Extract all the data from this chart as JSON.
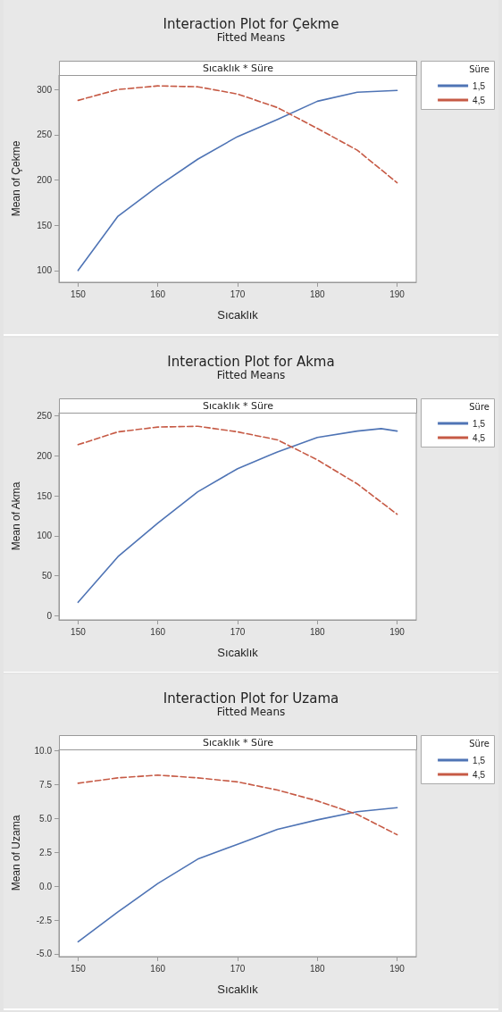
{
  "chart_data": [
    {
      "type": "line",
      "title": "Interaction Plot for Çekme",
      "subtitle": "Fitted Means",
      "annotations": [
        "Sıcaklık * Süre"
      ],
      "xlabel": "Sıcaklık",
      "ylabel": "Mean of Çekme",
      "legend_title": "Süre",
      "legend": "top right",
      "grid": false,
      "x": [
        150,
        155,
        160,
        165,
        170,
        175,
        180,
        185,
        190
      ],
      "xlim": [
        147.6,
        192.4
      ],
      "xticks": [
        150,
        160,
        170,
        180,
        190
      ],
      "ylim": [
        87,
        316
      ],
      "yticks": [
        100,
        150,
        200,
        250,
        300
      ],
      "series": [
        {
          "name": "1,5",
          "color": "#4f74b5",
          "line_style": "solid",
          "values": [
            100,
            160,
            193,
            223,
            248,
            267,
            287,
            297,
            299
          ]
        },
        {
          "name": "4,5",
          "color": "#c65a45",
          "line_style": "dashed",
          "values": [
            288,
            300,
            304,
            303,
            295,
            280,
            257,
            233,
            197
          ]
        }
      ]
    },
    {
      "type": "line",
      "title": "Interaction Plot for Akma",
      "subtitle": "Fitted Means",
      "annotations": [
        "Sıcaklık * Süre"
      ],
      "xlabel": "Sıcaklık",
      "ylabel": "Mean of Akma",
      "legend_title": "Süre",
      "legend": "top right",
      "grid": false,
      "x": [
        150,
        155,
        160,
        165,
        170,
        175,
        180,
        185,
        188,
        190
      ],
      "xlim": [
        147.6,
        192.4
      ],
      "xticks": [
        150,
        160,
        170,
        180,
        190
      ],
      "ylim": [
        -5,
        254
      ],
      "yticks": [
        0,
        50,
        100,
        150,
        200,
        250
      ],
      "series": [
        {
          "name": "1,5",
          "color": "#4f74b5",
          "line_style": "solid",
          "values": [
            17,
            74,
            116,
            155,
            184,
            205,
            223,
            231,
            234,
            231
          ]
        },
        {
          "name": "4,5",
          "color": "#c65a45",
          "line_style": "dashed",
          "x": [
            150,
            155,
            160,
            165,
            170,
            175,
            180,
            185,
            190
          ],
          "values": [
            214,
            230,
            236,
            237,
            230,
            220,
            195,
            165,
            127
          ]
        }
      ]
    },
    {
      "type": "line",
      "title": "Interaction Plot for Uzama",
      "subtitle": "Fitted Means",
      "annotations": [
        "Sıcaklık * Süre"
      ],
      "xlabel": "Sıcaklık",
      "ylabel": "Mean of Uzama",
      "legend_title": "Süre",
      "legend": "top right",
      "grid": false,
      "x": [
        150,
        155,
        160,
        165,
        170,
        175,
        180,
        185,
        190
      ],
      "xlim": [
        147.6,
        192.4
      ],
      "xticks": [
        150,
        160,
        170,
        180,
        190
      ],
      "ylim": [
        -5.2,
        10.1
      ],
      "yticks": [
        {
          "value": -5,
          "label": "-5.0"
        },
        {
          "value": -2.5,
          "label": "-2.5"
        },
        {
          "value": 0,
          "label": "0.0"
        },
        {
          "value": 2.5,
          "label": "2.5"
        },
        {
          "value": 5,
          "label": "5.0"
        },
        {
          "value": 7.5,
          "label": "7.5"
        },
        {
          "value": 10,
          "label": "10.0"
        }
      ],
      "series": [
        {
          "name": "1,5",
          "color": "#4f74b5",
          "line_style": "solid",
          "values": [
            -4.1,
            -1.9,
            0.2,
            2.0,
            3.1,
            4.2,
            4.9,
            5.5,
            5.8
          ]
        },
        {
          "name": "4,5",
          "color": "#c65a45",
          "line_style": "dashed",
          "values": [
            7.6,
            8.0,
            8.2,
            8.0,
            7.7,
            7.1,
            6.3,
            5.3,
            3.8
          ]
        }
      ]
    }
  ]
}
